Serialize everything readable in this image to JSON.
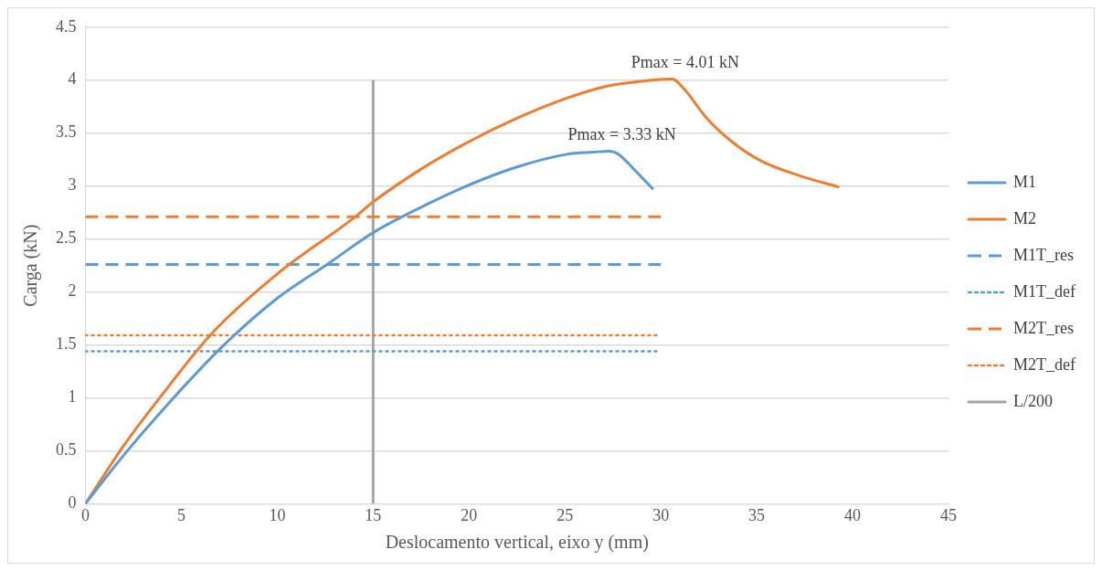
{
  "chart_data": {
    "type": "line",
    "xlabel": "Deslocamento vertical, eixo y (mm)",
    "ylabel": "Carga (kN)",
    "xlim": [
      0,
      45
    ],
    "xticks": [
      0,
      5,
      10,
      15,
      20,
      25,
      30,
      35,
      40,
      45
    ],
    "ylim": [
      0,
      4.5
    ],
    "yticks": [
      0,
      0.5,
      1,
      1.5,
      2,
      2.5,
      3,
      3.5,
      4,
      4.5
    ],
    "grid": "y",
    "legend": "right",
    "marker": "none",
    "series": [
      {
        "name": "M1",
        "color": "#5b9bd5",
        "line_style": "solid",
        "x": [
          0,
          2,
          4,
          7,
          10,
          12.6,
          15,
          17.5,
          20,
          22.5,
          25.1,
          26.5,
          27.3,
          27.8,
          28.7,
          29.6
        ],
        "values": [
          0,
          0.46,
          0.88,
          1.46,
          1.94,
          2.26,
          2.56,
          2.8,
          3.01,
          3.18,
          3.3,
          3.32,
          3.33,
          3.3,
          3.14,
          2.97
        ]
      },
      {
        "name": "M2",
        "color": "#ed7d31",
        "line_style": "solid",
        "x": [
          0,
          2,
          4,
          6.6,
          10,
          14,
          15,
          17.5,
          20,
          22.5,
          25.1,
          27.1,
          29,
          30.6,
          31.2,
          32.4,
          33.7,
          35.2,
          37.2,
          39.3
        ],
        "values": [
          0,
          0.55,
          1.03,
          1.61,
          2.17,
          2.7,
          2.85,
          3.16,
          3.42,
          3.64,
          3.83,
          3.94,
          3.99,
          4.01,
          3.92,
          3.64,
          3.42,
          3.24,
          3.1,
          2.99
        ]
      },
      {
        "name": "M1T_res",
        "color": "#5b9bd5",
        "line_style": "dashed",
        "x": [
          0,
          30
        ],
        "values": [
          2.26,
          2.26
        ]
      },
      {
        "name": "M1T_def",
        "color": "#5b9bd5",
        "line_style": "dotted",
        "x": [
          0,
          30
        ],
        "values": [
          1.44,
          1.44
        ]
      },
      {
        "name": "M2T_res",
        "color": "#ed7d31",
        "line_style": "dashed",
        "x": [
          0,
          30
        ],
        "values": [
          2.71,
          2.71
        ]
      },
      {
        "name": "M2T_def",
        "color": "#ed7d31",
        "line_style": "dotted",
        "x": [
          0,
          30
        ],
        "values": [
          1.59,
          1.59
        ]
      },
      {
        "name": "L/200",
        "color": "#a5a5a5",
        "line_style": "solid",
        "x": [
          15,
          15
        ],
        "values": [
          0,
          4
        ]
      }
    ],
    "annotations": [
      {
        "text": "Pmax = 3.33 kN",
        "x": 27.3,
        "y": 3.33
      },
      {
        "text": "Pmax = 4.01 kN",
        "x": 30.6,
        "y": 4.01
      }
    ]
  }
}
